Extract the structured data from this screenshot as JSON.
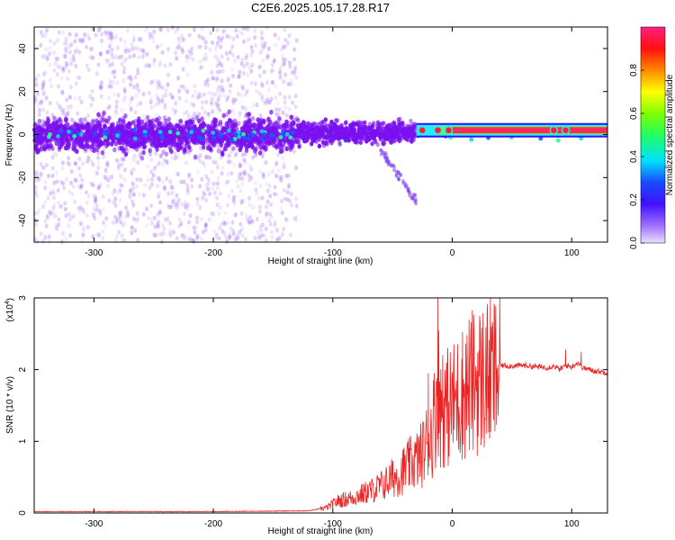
{
  "title": "C2E6.2025.105.17.28.R17",
  "colors": {
    "spectrogram_point": "#7a10f0",
    "band": "#ff2a5a",
    "snr_line": "#ee2222"
  },
  "chart_data": [
    {
      "type": "heatmap",
      "xlabel": "Height of straight line (km)",
      "ylabel": "Frequency (Hz)",
      "xlim": [
        -350,
        130
      ],
      "ylim": [
        -50,
        50
      ],
      "x_ticks": [
        -300,
        -200,
        -100,
        0,
        100
      ],
      "y_ticks": [
        -40,
        -20,
        0,
        20,
        40
      ],
      "colorbar": {
        "label": "Normalized spectral amplitude",
        "range": [
          0,
          1
        ],
        "ticks": [
          "0.0",
          "0.2",
          "0.4",
          "0.6",
          "0.8"
        ],
        "colormap": "hsv-rainbow (violet low, red high)"
      },
      "regions": [
        {
          "x_range": [
            -350,
            -130
          ],
          "description": "broadband scatter",
          "freq_spread": [
            -50,
            50
          ],
          "core_band": [
            -10,
            10
          ]
        },
        {
          "x_range": [
            -130,
            -30
          ],
          "description": "narrowing band with cyan/green spots",
          "freq_spread": [
            -10,
            12
          ]
        },
        {
          "x_range": [
            -30,
            130
          ],
          "description": "narrow red band",
          "freq_center": 2,
          "freq_width": 2.5
        }
      ]
    },
    {
      "type": "line",
      "xlabel": "Height of straight line (km)",
      "ylabel": "SNR (10 * v/v)",
      "y_multiplier": "(x10",
      "y_multiplier_exp": "4",
      "y_multiplier_close": ")",
      "xlim": [
        -350,
        130
      ],
      "ylim": [
        0,
        3
      ],
      "x_ticks": [
        -300,
        -200,
        -100,
        0,
        100
      ],
      "y_ticks": [
        0,
        1,
        2,
        3
      ],
      "series": [
        {
          "color": "#ee2222",
          "x": [
            -350,
            -300,
            -200,
            -120,
            -105,
            -95,
            -85,
            -75,
            -65,
            -55,
            -50,
            -45,
            -40,
            -35,
            -30,
            -25,
            -20,
            -17,
            -14,
            -12,
            -10,
            -8,
            -5,
            0,
            5,
            10,
            15,
            20,
            25,
            30,
            35,
            40,
            50,
            60,
            70,
            80,
            85,
            90,
            95,
            100,
            105,
            110,
            120,
            130
          ],
          "y": [
            0.02,
            0.02,
            0.02,
            0.03,
            0.08,
            0.18,
            0.22,
            0.28,
            0.35,
            0.45,
            0.52,
            0.55,
            0.65,
            0.72,
            0.78,
            0.88,
            1.1,
            1.2,
            1.5,
            2.0,
            1.5,
            1.6,
            1.55,
            1.6,
            1.7,
            1.8,
            1.9,
            1.95,
            1.98,
            2.02,
            2.05,
            2.06,
            2.05,
            2.06,
            2.04,
            2.03,
            2.05,
            2.0,
            2.06,
            2.04,
            2.1,
            2.02,
            1.98,
            1.96
          ],
          "spikes": [
            {
              "x": -12,
              "y": 3.02
            },
            {
              "x": -20,
              "y": 1.95
            },
            {
              "x": -8,
              "y": 2.2
            },
            {
              "x": 8,
              "y": 2.15
            },
            {
              "x": 95,
              "y": 2.28
            },
            {
              "x": 108,
              "y": 2.25
            }
          ]
        }
      ]
    }
  ]
}
